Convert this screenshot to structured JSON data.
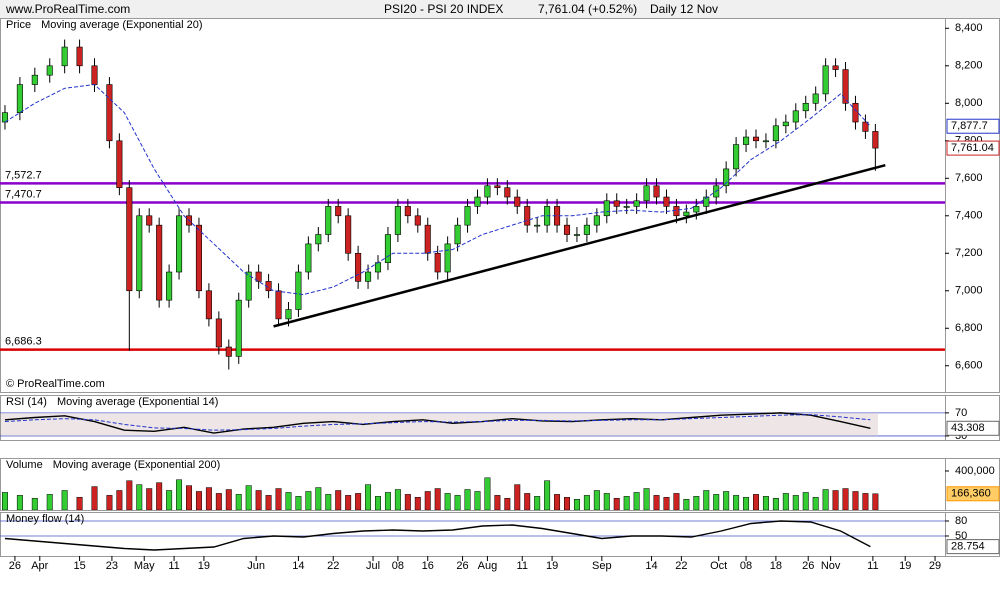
{
  "header": {
    "site": "www.ProRealTime.com",
    "title": "PSI20 - PSI 20 INDEX",
    "quote": "7,761.04 (+0.52%)",
    "period": "Daily  12 Nov",
    "copyright": "© ProRealTime.com"
  },
  "chart_data": [
    {
      "type": "candlestick",
      "title": "Price",
      "xlim": [
        0,
        190
      ],
      "ylim": [
        6460,
        8455
      ],
      "yticks": [
        {
          "value": 6600,
          "label": "6,600"
        },
        {
          "value": 6800,
          "label": "6,800"
        },
        {
          "value": 7000,
          "label": "7,000"
        },
        {
          "value": 7200,
          "label": "7,200"
        },
        {
          "value": 7400,
          "label": "7,400"
        },
        {
          "value": 7600,
          "label": "7,600"
        },
        {
          "value": 7800,
          "label": "7,800"
        },
        {
          "value": 8000,
          "label": "8,000"
        },
        {
          "value": 8200,
          "label": "8,200"
        },
        {
          "value": 8400,
          "label": "8,400"
        }
      ],
      "up_color": "#33cc33",
      "down_color": "#cc2222",
      "candles": {
        "x": [
          1,
          4,
          7,
          10,
          13,
          16,
          19,
          22,
          24,
          26,
          28,
          30,
          32,
          34,
          36,
          38,
          40,
          42,
          44,
          46,
          48,
          50,
          52,
          54,
          56,
          58,
          60,
          62,
          64,
          66,
          68,
          70,
          72,
          74,
          76,
          78,
          80,
          82,
          84,
          86,
          88,
          90,
          92,
          94,
          96,
          98,
          100,
          102,
          104,
          106,
          108,
          110,
          112,
          114,
          116,
          118,
          120,
          122,
          124,
          126,
          128,
          130,
          132,
          134,
          136,
          138,
          140,
          142,
          144,
          146,
          148,
          150,
          152,
          154,
          156,
          158,
          160,
          162,
          164,
          166,
          168,
          170,
          172,
          174,
          176
        ],
        "open": [
          7900,
          7950,
          8100,
          8150,
          8200,
          8300,
          8200,
          8100,
          7800,
          7550,
          7000,
          7400,
          7350,
          6950,
          7100,
          7400,
          7350,
          7000,
          6850,
          6700,
          6650,
          6950,
          7100,
          7050,
          7000,
          6850,
          6900,
          7100,
          7250,
          7300,
          7450,
          7400,
          7200,
          7050,
          7100,
          7150,
          7300,
          7450,
          7400,
          7350,
          7200,
          7100,
          7250,
          7350,
          7450,
          7500,
          7560,
          7550,
          7500,
          7450,
          7350,
          7350,
          7450,
          7350,
          7300,
          7300,
          7350,
          7400,
          7480,
          7450,
          7450,
          7480,
          7560,
          7500,
          7450,
          7400,
          7420,
          7450,
          7500,
          7560,
          7650,
          7780,
          7820,
          7800,
          7800,
          7880,
          7900,
          7960,
          8000,
          8050,
          8200,
          8180,
          8000,
          7900,
          7850
        ],
        "high": [
          7990,
          8140,
          8190,
          8240,
          8340,
          8340,
          8240,
          8140,
          7840,
          7590,
          7440,
          7440,
          7390,
          7140,
          7440,
          7440,
          7390,
          7040,
          6890,
          6740,
          6990,
          7140,
          7140,
          7090,
          7040,
          6940,
          7140,
          7290,
          7340,
          7490,
          7490,
          7440,
          7240,
          7140,
          7190,
          7340,
          7490,
          7490,
          7440,
          7390,
          7240,
          7290,
          7390,
          7490,
          7540,
          7600,
          7600,
          7590,
          7540,
          7490,
          7390,
          7490,
          7490,
          7390,
          7340,
          7390,
          7440,
          7520,
          7520,
          7490,
          7520,
          7600,
          7600,
          7540,
          7490,
          7460,
          7490,
          7540,
          7600,
          7690,
          7820,
          7860,
          7860,
          7840,
          7920,
          7940,
          8000,
          8040,
          8090,
          8240,
          8240,
          8220,
          8040,
          7940,
          7890
        ],
        "low": [
          7860,
          7910,
          8060,
          8110,
          8160,
          8160,
          8060,
          7760,
          7510,
          6680,
          6960,
          7310,
          6910,
          6910,
          7060,
          7310,
          6960,
          6810,
          6660,
          6580,
          6610,
          6910,
          7010,
          6960,
          6810,
          6810,
          6860,
          7060,
          7210,
          7260,
          7360,
          7160,
          7010,
          7010,
          7060,
          7110,
          7260,
          7360,
          7310,
          7160,
          7060,
          7060,
          7210,
          7310,
          7410,
          7460,
          7510,
          7460,
          7410,
          7310,
          7310,
          7310,
          7310,
          7260,
          7260,
          7260,
          7310,
          7360,
          7410,
          7410,
          7410,
          7440,
          7460,
          7410,
          7360,
          7360,
          7380,
          7410,
          7460,
          7520,
          7610,
          7740,
          7760,
          7760,
          7760,
          7840,
          7860,
          7920,
          7960,
          8010,
          8140,
          7960,
          7860,
          7810,
          7640
        ],
        "close": [
          7950,
          8100,
          8150,
          8200,
          8300,
          8200,
          8100,
          7800,
          7550,
          7000,
          7400,
          7350,
          6950,
          7100,
          7400,
          7350,
          7000,
          6850,
          6700,
          6650,
          6950,
          7100,
          7050,
          7000,
          6850,
          6900,
          7100,
          7250,
          7300,
          7450,
          7400,
          7200,
          7050,
          7100,
          7150,
          7300,
          7450,
          7400,
          7350,
          7200,
          7100,
          7250,
          7350,
          7450,
          7500,
          7560,
          7550,
          7500,
          7450,
          7350,
          7350,
          7450,
          7350,
          7300,
          7300,
          7350,
          7400,
          7480,
          7450,
          7450,
          7480,
          7560,
          7500,
          7450,
          7400,
          7420,
          7450,
          7500,
          7560,
          7650,
          7780,
          7820,
          7800,
          7800,
          7880,
          7900,
          7960,
          8000,
          8050,
          8200,
          8180,
          8000,
          7900,
          7850,
          7761
        ]
      },
      "series": [
        {
          "name": "Moving average (Exponential 20)",
          "color": "#2233cc",
          "dashed": true,
          "x": [
            1,
            7,
            13,
            19,
            25,
            31,
            37,
            43,
            49,
            55,
            61,
            67,
            73,
            79,
            85,
            91,
            97,
            103,
            109,
            115,
            121,
            127,
            133,
            139,
            145,
            151,
            157,
            163,
            169,
            175
          ],
          "values": [
            7900,
            8000,
            8080,
            8100,
            7950,
            7650,
            7400,
            7250,
            7100,
            7000,
            6980,
            7020,
            7100,
            7200,
            7200,
            7220,
            7300,
            7350,
            7400,
            7400,
            7420,
            7430,
            7420,
            7440,
            7550,
            7700,
            7800,
            7920,
            8050,
            7877.7
          ]
        }
      ],
      "levels": [
        {
          "value": 7572.7,
          "label": "7,572.7",
          "color": "#8800cc"
        },
        {
          "value": 7470.7,
          "label": "7,470.7",
          "color": "#8800cc"
        },
        {
          "value": 6686.3,
          "label": "6,686.3",
          "color": "#dd0000"
        }
      ],
      "trendline": {
        "x": [
          55,
          178
        ],
        "values": [
          6810,
          7670
        ],
        "color": "#000000"
      },
      "markers": [
        {
          "value": 7877.7,
          "label": "7,877.7",
          "color": "#2233cc"
        },
        {
          "value": 7761.04,
          "label": "7,761.04",
          "color": "#cc2222"
        }
      ]
    },
    {
      "type": "line",
      "title": "RSI (14)",
      "xlim": [
        0,
        190
      ],
      "ylim": [
        23,
        101
      ],
      "yticks": [
        30,
        70
      ],
      "series": [
        {
          "color": "#000000",
          "x": [
            1,
            7,
            13,
            19,
            25,
            31,
            37,
            43,
            49,
            55,
            61,
            67,
            73,
            79,
            85,
            91,
            97,
            103,
            109,
            115,
            121,
            127,
            133,
            139,
            145,
            151,
            157,
            163,
            169,
            175
          ],
          "values": [
            58,
            62,
            65,
            55,
            40,
            38,
            45,
            35,
            42,
            45,
            52,
            55,
            50,
            55,
            58,
            52,
            55,
            60,
            56,
            55,
            58,
            60,
            58,
            62,
            66,
            68,
            70,
            66,
            55,
            43.308
          ]
        },
        {
          "name": "Moving average (Exponential 14)",
          "color": "#2233cc",
          "dashed": true,
          "x": [
            1,
            7,
            13,
            19,
            25,
            31,
            37,
            43,
            49,
            55,
            61,
            67,
            73,
            79,
            85,
            91,
            97,
            103,
            109,
            115,
            121,
            127,
            133,
            139,
            145,
            151,
            157,
            163,
            169,
            175
          ],
          "values": [
            55,
            58,
            60,
            58,
            50,
            44,
            43,
            40,
            41,
            43,
            47,
            50,
            51,
            53,
            55,
            54,
            55,
            57,
            57,
            56,
            57,
            58,
            58,
            60,
            62,
            64,
            66,
            67,
            63,
            58
          ]
        }
      ],
      "markers": [
        43.308
      ]
    },
    {
      "type": "bar",
      "title": "Volume",
      "xlim": [
        0,
        190
      ],
      "ylim": [
        0,
        533000
      ],
      "yticks": [
        {
          "value": 400000,
          "label": "400,000"
        }
      ],
      "legend": "Moving average (Exponential 200)",
      "x": [
        1,
        4,
        7,
        10,
        13,
        16,
        19,
        22,
        24,
        26,
        28,
        30,
        32,
        34,
        36,
        38,
        40,
        42,
        44,
        46,
        48,
        50,
        52,
        54,
        56,
        58,
        60,
        62,
        64,
        66,
        68,
        70,
        72,
        74,
        76,
        78,
        80,
        82,
        84,
        86,
        88,
        90,
        92,
        94,
        96,
        98,
        100,
        102,
        104,
        106,
        108,
        110,
        112,
        114,
        116,
        118,
        120,
        122,
        124,
        126,
        128,
        130,
        132,
        134,
        136,
        138,
        140,
        142,
        144,
        146,
        148,
        150,
        152,
        154,
        156,
        158,
        160,
        162,
        164,
        166,
        168,
        170,
        172,
        174,
        176
      ],
      "values": [
        180000,
        150000,
        120000,
        160000,
        200000,
        130000,
        240000,
        150000,
        200000,
        300000,
        260000,
        220000,
        280000,
        200000,
        310000,
        250000,
        190000,
        230000,
        170000,
        210000,
        160000,
        250000,
        200000,
        150000,
        220000,
        180000,
        140000,
        190000,
        230000,
        160000,
        200000,
        150000,
        170000,
        260000,
        140000,
        180000,
        210000,
        160000,
        130000,
        190000,
        220000,
        170000,
        150000,
        210000,
        190000,
        330000,
        150000,
        120000,
        260000,
        170000,
        140000,
        300000,
        160000,
        130000,
        110000,
        150000,
        200000,
        170000,
        120000,
        140000,
        180000,
        220000,
        150000,
        130000,
        170000,
        110000,
        140000,
        200000,
        160000,
        190000,
        150000,
        130000,
        160000,
        140000,
        120000,
        170000,
        150000,
        180000,
        130000,
        210000,
        200000,
        220000,
        190000,
        170000,
        166360
      ],
      "markers": [
        {
          "value": 166360,
          "label": "166,360",
          "color": "#ff9900"
        }
      ]
    },
    {
      "type": "line",
      "title": "Money flow (14)",
      "xlim": [
        0,
        190
      ],
      "ylim": [
        10,
        98
      ],
      "yticks": [
        50,
        80
      ],
      "series": [
        {
          "color": "#000000",
          "x": [
            1,
            7,
            13,
            19,
            25,
            31,
            37,
            43,
            49,
            55,
            61,
            67,
            73,
            79,
            85,
            91,
            97,
            103,
            109,
            115,
            121,
            127,
            133,
            139,
            145,
            151,
            157,
            163,
            169,
            175
          ],
          "values": [
            45,
            40,
            35,
            30,
            25,
            22,
            25,
            28,
            45,
            50,
            48,
            55,
            60,
            62,
            60,
            62,
            70,
            72,
            65,
            55,
            45,
            50,
            50,
            48,
            60,
            75,
            80,
            78,
            60,
            28.754
          ]
        }
      ],
      "markers": [
        28.754
      ],
      "xticks": [
        {
          "value": 3,
          "label": "26"
        },
        {
          "value": 8,
          "label": "Apr"
        },
        {
          "value": 16,
          "label": "15"
        },
        {
          "value": 22.5,
          "label": "23"
        },
        {
          "value": 29,
          "label": "May"
        },
        {
          "value": 35,
          "label": "11"
        },
        {
          "value": 41,
          "label": "19"
        },
        {
          "value": 51.5,
          "label": "Jun"
        },
        {
          "value": 60,
          "label": "14"
        },
        {
          "value": 67,
          "label": "22"
        },
        {
          "value": 75,
          "label": "Jul"
        },
        {
          "value": 80,
          "label": "08"
        },
        {
          "value": 86,
          "label": "16"
        },
        {
          "value": 93,
          "label": "26"
        },
        {
          "value": 98,
          "label": "Aug"
        },
        {
          "value": 105,
          "label": "11"
        },
        {
          "value": 111,
          "label": "19"
        },
        {
          "value": 121,
          "label": "Sep"
        },
        {
          "value": 131,
          "label": "14"
        },
        {
          "value": 137,
          "label": "22"
        },
        {
          "value": 144.5,
          "label": "Oct"
        },
        {
          "value": 150,
          "label": "08"
        },
        {
          "value": 156,
          "label": "18"
        },
        {
          "value": 162.5,
          "label": "26"
        },
        {
          "value": 167,
          "label": "Nov"
        },
        {
          "value": 175.5,
          "label": "11"
        },
        {
          "value": 182,
          "label": "19"
        },
        {
          "value": 188,
          "label": "29"
        }
      ]
    }
  ]
}
